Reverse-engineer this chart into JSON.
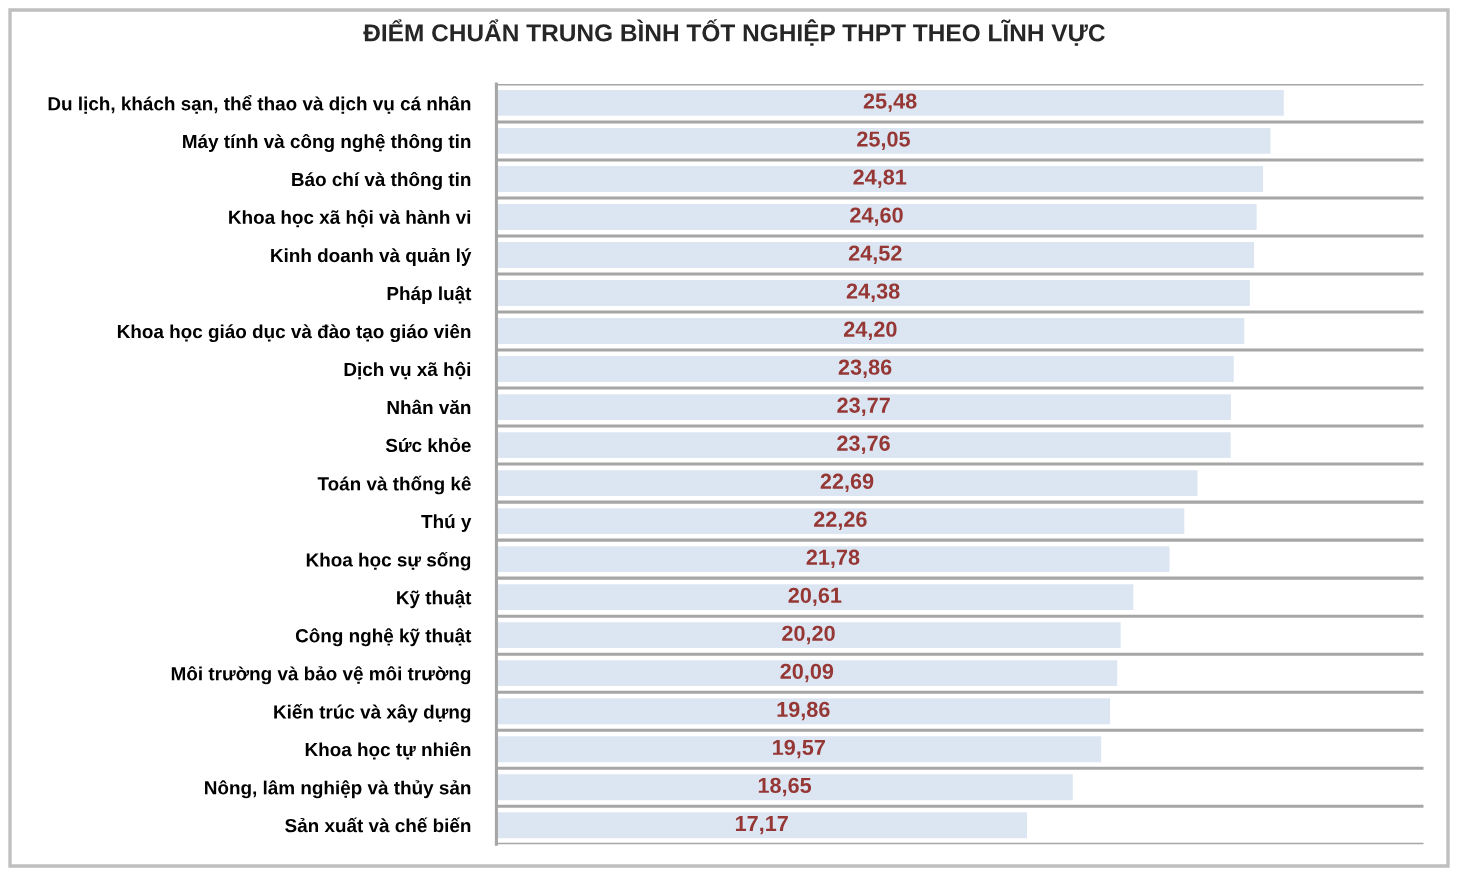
{
  "chart_data": {
    "type": "bar",
    "orientation": "horizontal",
    "title": "ĐIỂM CHUẨN TRUNG BÌNH TỐT NGHIỆP THPT THEO LĨNH VỰC",
    "categories": [
      "Du lịch, khách sạn, thể thao và dịch vụ cá nhân",
      "Máy tính và công nghệ thông tin",
      "Báo chí và thông tin",
      "Khoa học xã hội và hành vi",
      "Kinh doanh và quản lý",
      "Pháp luật",
      "Khoa học giáo dục và đào tạo giáo viên",
      "Dịch vụ xã hội",
      "Nhân văn",
      "Sức khỏe",
      "Toán và thống kê",
      "Thú y",
      "Khoa học sự sống",
      "Kỹ thuật",
      "Công nghệ kỹ thuật",
      "Môi trường và bảo vệ môi trường",
      "Kiến trúc và xây dựng",
      "Khoa học tự nhiên",
      "Nông, lâm nghiệp và thủy sản",
      "Sản xuất và chế biến"
    ],
    "values": [
      25.48,
      25.05,
      24.81,
      24.6,
      24.52,
      24.38,
      24.2,
      23.86,
      23.77,
      23.76,
      22.69,
      22.26,
      21.78,
      20.61,
      20.2,
      20.09,
      19.86,
      19.57,
      18.65,
      17.17
    ],
    "value_labels": [
      "25,48",
      "25,05",
      "24,81",
      "24,60",
      "24,52",
      "24,38",
      "24,20",
      "23,86",
      "23,77",
      "23,76",
      "22,69",
      "22,26",
      "21,78",
      "20,61",
      "20,20",
      "20,09",
      "19,86",
      "19,57",
      "18,65",
      "17,17"
    ],
    "color": "#dce6f2",
    "xlim": [
      0,
      30
    ],
    "tick_labels": "y",
    "grid": "y"
  }
}
